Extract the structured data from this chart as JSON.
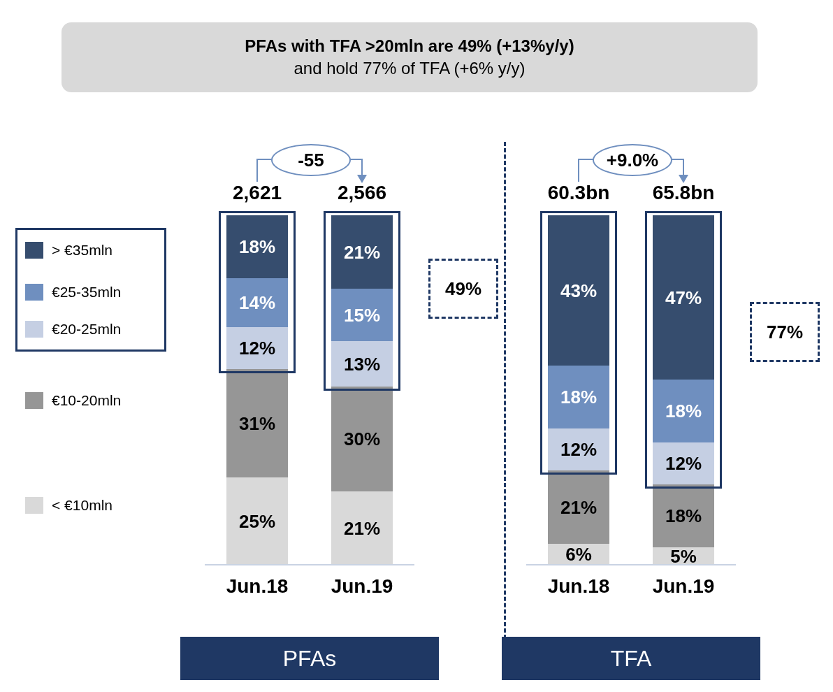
{
  "chart_data": [
    {
      "type": "bar",
      "title": "PFAs with TFA >20mln are 49% (+13%y/y)",
      "subtitle": "and hold 77% of TFA (+6% y/y)",
      "xlabel": "PFAs",
      "categories": [
        "Jun.18",
        "Jun.19"
      ],
      "stacked": true,
      "ylim": [
        0,
        100
      ],
      "tick_labels": "x",
      "legend": "left",
      "annotations": [
        {
          "text": "2,621",
          "x": "Jun.18",
          "y": 100
        },
        {
          "text": "2,566",
          "x": "Jun.19",
          "y": 100
        },
        "-55",
        "49%"
      ],
      "series": [
        {
          "name": "< €10mln",
          "color": "#d9d9d9",
          "values": [
            25,
            21
          ],
          "value_labels": [
            "25%",
            "21%"
          ]
        },
        {
          "name": "€10-20mln",
          "color": "#969696",
          "values": [
            31,
            30
          ],
          "value_labels": [
            "31%",
            "30%"
          ]
        },
        {
          "name": "€20-25mln",
          "color": "#c5cfe3",
          "values": [
            12,
            13
          ],
          "value_labels": [
            "12%",
            "13%"
          ]
        },
        {
          "name": "€25-35mln",
          "color": "#6f8fbf",
          "values": [
            14,
            15
          ],
          "value_labels": [
            "14%",
            "15%"
          ]
        },
        {
          "name": "> €35mln",
          "color": "#364d6e",
          "values": [
            18,
            21
          ],
          "value_labels": [
            "18%",
            "21%"
          ]
        }
      ]
    },
    {
      "type": "bar",
      "xlabel": "TFA",
      "categories": [
        "Jun.18",
        "Jun.19"
      ],
      "stacked": true,
      "ylim": [
        0,
        100
      ],
      "tick_labels": "x",
      "annotations": [
        {
          "text": "60.3bn",
          "x": "Jun.18",
          "y": 100
        },
        {
          "text": "65.8bn",
          "x": "Jun.19",
          "y": 100
        },
        "+9.0%",
        "77%"
      ],
      "series": [
        {
          "color": "#d9d9d9",
          "values": [
            6,
            5
          ],
          "value_labels": [
            "6%",
            "5%"
          ]
        },
        {
          "color": "#969696",
          "values": [
            21,
            18
          ],
          "value_labels": [
            "21%",
            "18%"
          ]
        },
        {
          "color": "#c5cfe3",
          "values": [
            12,
            12
          ],
          "value_labels": [
            "12%",
            "12%"
          ]
        },
        {
          "color": "#6f8fbf",
          "values": [
            18,
            18
          ],
          "value_labels": [
            "18%",
            "18%"
          ]
        },
        {
          "color": "#364d6e",
          "values": [
            43,
            47
          ],
          "value_labels": [
            "43%",
            "47%"
          ]
        }
      ]
    }
  ]
}
